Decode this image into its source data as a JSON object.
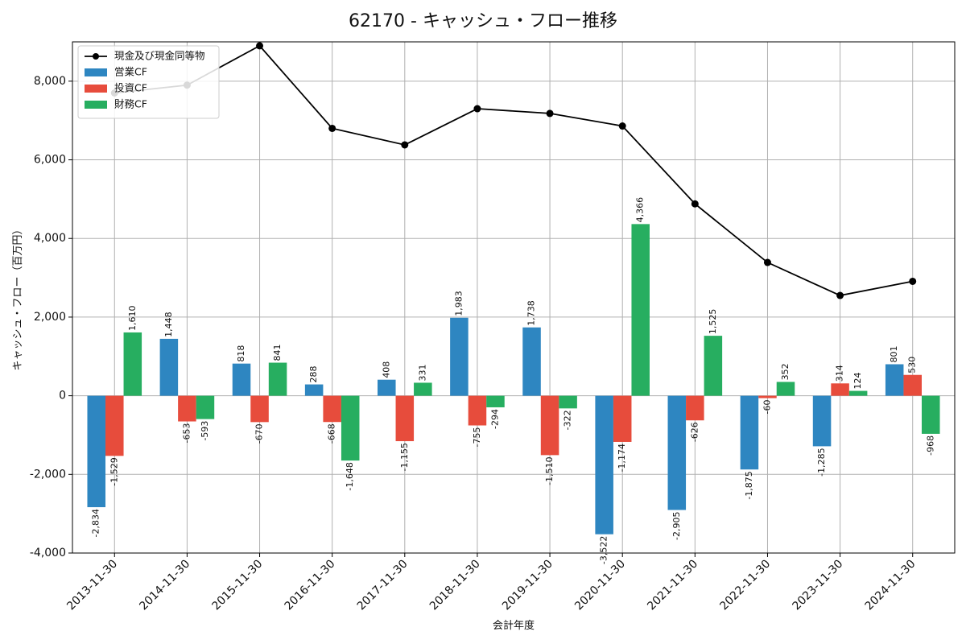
{
  "chart_data": {
    "type": "bar",
    "title": "62170 - キャッシュ・フロー推移",
    "xlabel": "会計年度",
    "ylabel": "キャッシュ・フロー（百万円）",
    "ylim": [
      -4000,
      9000
    ],
    "yticks": [
      -4000,
      -2000,
      0,
      2000,
      4000,
      6000,
      8000
    ],
    "ytick_labels": [
      "-4,000",
      "-2,000",
      "0",
      "2,000",
      "4,000",
      "6,000",
      "8,000"
    ],
    "grid": true,
    "legend_position": "top-left",
    "categories": [
      "2013-11-30",
      "2014-11-30",
      "2015-11-30",
      "2016-11-30",
      "2017-11-30",
      "2018-11-30",
      "2019-11-30",
      "2020-11-30",
      "2021-11-30",
      "2022-11-30",
      "2023-11-30",
      "2024-11-30"
    ],
    "series": [
      {
        "name": "営業CF",
        "kind": "bar",
        "color": "#2e86c1",
        "values": [
          -2834,
          1448,
          818,
          288,
          408,
          1983,
          1738,
          -3522,
          -2905,
          -1875,
          -1285,
          801
        ],
        "labels": [
          "-2,834",
          "1,448",
          "818",
          "288",
          "408",
          "1,983",
          "1,738",
          "-3,522",
          "-2,905",
          "-1,875",
          "-1,285",
          "801"
        ]
      },
      {
        "name": "投資CF",
        "kind": "bar",
        "color": "#e74c3c",
        "values": [
          -1529,
          -653,
          -670,
          -668,
          -1155,
          -755,
          -1510,
          -1174,
          -626,
          -60,
          314,
          530
        ],
        "labels": [
          "-1,529",
          "-653",
          "-670",
          "-668",
          "-1,155",
          "-755",
          "-1,510",
          "-1,174",
          "-626",
          "-60",
          "314",
          "530"
        ]
      },
      {
        "name": "財務CF",
        "kind": "bar",
        "color": "#27ae60",
        "values": [
          1610,
          -593,
          841,
          -1648,
          331,
          -294,
          -322,
          4366,
          1525,
          352,
          124,
          -968
        ],
        "labels": [
          "1,610",
          "-593",
          "841",
          "-1,648",
          "331",
          "-294",
          "-322",
          "4,366",
          "1,525",
          "352",
          "124",
          "-968"
        ]
      },
      {
        "name": "現金及び現金同等物",
        "kind": "line",
        "color": "#000000",
        "values": [
          7700,
          7900,
          8900,
          6800,
          6380,
          7300,
          7180,
          6860,
          4880,
          3390,
          2550,
          2910
        ]
      }
    ]
  }
}
